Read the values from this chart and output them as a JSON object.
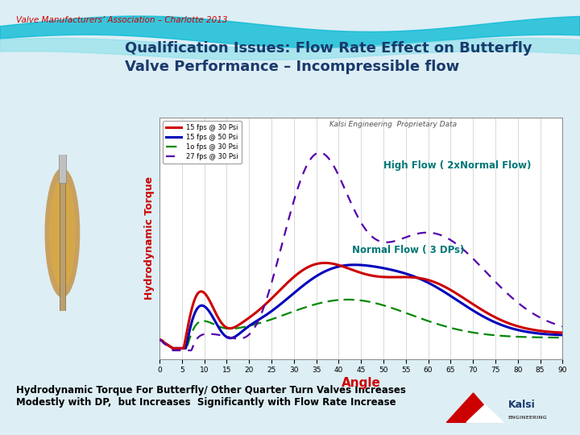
{
  "title_main": "Qualification Issues: Flow Rate Effect on Butterfly\nValve Performance – Incompressible flow",
  "header": "Valve Manufacturers’ Association – Charlotte 2013",
  "watermark": "Kalsi Engineering  Proprietary Data",
  "ylabel": "Hydrodynamic Torque",
  "xlabel": "Angle",
  "annotation_high": "High Flow ( 2xNormal Flow)",
  "annotation_normal": "Normal Flow ( 3 DPs)",
  "footer": "Hydrodynamic Torque For Butterfly/ Other Quarter Turn Valves Increases\nModestly with DP,  but Increases  Significantly with Flow Rate Increase",
  "legend_labels": [
    "15 fps @ 30 Psi",
    "15 fps @ 50 Psi",
    "1o fps @ 30 Psi",
    "27 fps @ 30 Psi"
  ],
  "legend_colors": [
    "#cc0000",
    "#0000bb",
    "#008800",
    "#5500aa"
  ],
  "bg_color": "#ddeef5",
  "header_color": "#cc0000",
  "title_color": "#1a3a6b",
  "ylabel_color": "#cc0000",
  "xlabel_color": "#cc0000",
  "annotation_high_color": "#007777",
  "annotation_normal_color": "#007777",
  "footer_color": "#000000",
  "plot_bg": "#ffffff",
  "grid_color": "#bbbbbb",
  "xticks": [
    0,
    5,
    10,
    15,
    20,
    25,
    30,
    35,
    40,
    45,
    50,
    55,
    60,
    65,
    70,
    75,
    80,
    85,
    90
  ]
}
